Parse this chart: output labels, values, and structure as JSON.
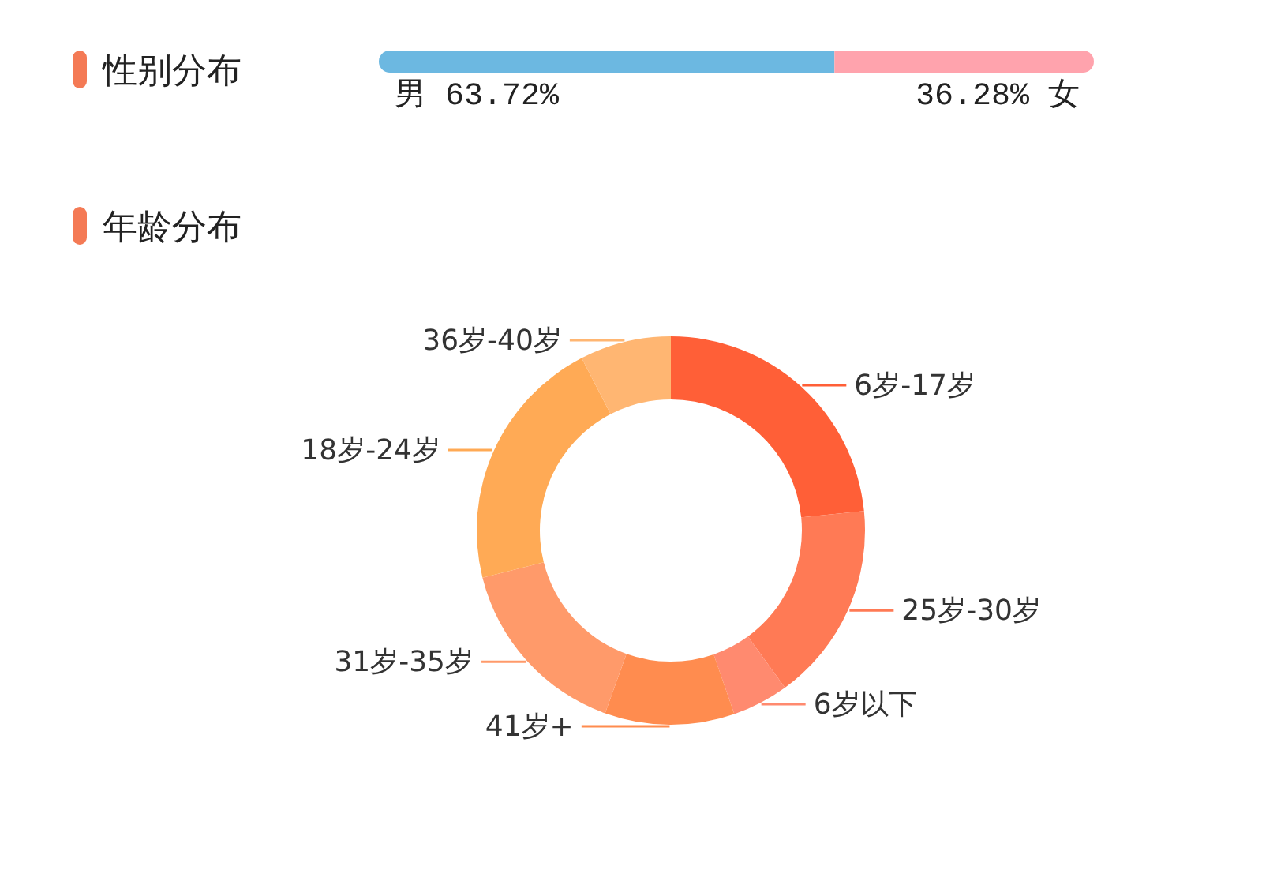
{
  "chart_data": [
    {
      "type": "bar",
      "title": "性别分布",
      "orientation": "horizontal",
      "stacked": true,
      "categories": [
        null
      ],
      "series": [
        {
          "name": "男",
          "color": "#6cb8e1",
          "values": [
            63.72
          ],
          "value_labels": [
            "63.72%"
          ]
        },
        {
          "name": "女",
          "color": "#ffa3ad",
          "values": [
            36.28
          ],
          "value_labels": [
            "36.28%"
          ]
        }
      ]
    },
    {
      "type": "donut",
      "title": "年龄分布",
      "categories": [
        "6岁-17岁",
        "25岁-30岁",
        "6岁以下",
        "41岁+",
        "31岁-35岁",
        "18岁-24岁",
        "36岁-40岁"
      ],
      "values": [
        23.4,
        16.6,
        4.7,
        10.8,
        15.6,
        21.3,
        7.6
      ],
      "colors": [
        "#ff5f37",
        "#ff7a55",
        "#ff8a6f",
        "#ff8c4f",
        "#ff9a6a",
        "#ffaa55",
        "#ffb672"
      ]
    }
  ]
}
